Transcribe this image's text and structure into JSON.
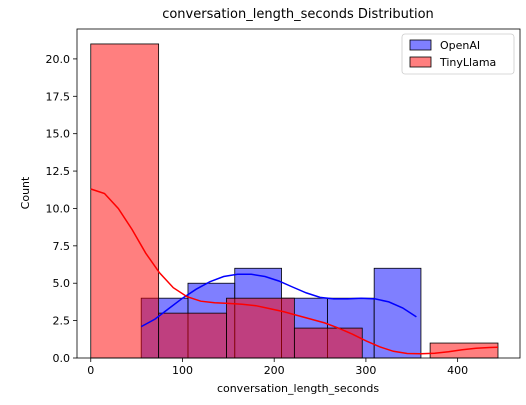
{
  "chart_data": {
    "type": "histogram",
    "title": "conversation_length_seconds Distribution",
    "xlabel": "conversation_length_seconds",
    "ylabel": "Count",
    "xlim": [
      -15,
      468
    ],
    "ylim": [
      0,
      22
    ],
    "xticks": [
      0,
      100,
      200,
      300,
      400
    ],
    "yticks": [
      0.0,
      2.5,
      5.0,
      7.5,
      10.0,
      12.5,
      15.0,
      17.5,
      20.0
    ],
    "legend_position": "top-right",
    "series": [
      {
        "name": "OpenAI",
        "color": "#0000ff",
        "bins": [
          {
            "x0": 55,
            "x1": 106,
            "count": 4
          },
          {
            "x0": 106,
            "x1": 157,
            "count": 5
          },
          {
            "x0": 157,
            "x1": 208,
            "count": 6
          },
          {
            "x0": 208,
            "x1": 258,
            "count": 4
          },
          {
            "x0": 258,
            "x1": 309,
            "count": 4
          },
          {
            "x0": 309,
            "x1": 360,
            "count": 6
          }
        ],
        "kde": [
          [
            55,
            2.1
          ],
          [
            70,
            2.6
          ],
          [
            85,
            3.3
          ],
          [
            100,
            4.0
          ],
          [
            115,
            4.6
          ],
          [
            130,
            5.1
          ],
          [
            145,
            5.45
          ],
          [
            160,
            5.6
          ],
          [
            175,
            5.6
          ],
          [
            190,
            5.45
          ],
          [
            205,
            5.15
          ],
          [
            220,
            4.75
          ],
          [
            235,
            4.35
          ],
          [
            250,
            4.05
          ],
          [
            265,
            3.95
          ],
          [
            280,
            3.95
          ],
          [
            295,
            4.0
          ],
          [
            310,
            3.95
          ],
          [
            325,
            3.75
          ],
          [
            340,
            3.35
          ],
          [
            355,
            2.75
          ]
        ]
      },
      {
        "name": "TinyLlama",
        "color": "#ff0000",
        "bins": [
          {
            "x0": 0,
            "x1": 74,
            "count": 21
          },
          {
            "x0": 74,
            "x1": 148,
            "count": 3
          },
          {
            "x0": 148,
            "x1": 222,
            "count": 4
          },
          {
            "x0": 222,
            "x1": 296,
            "count": 2
          },
          {
            "x0": 296,
            "x1": 370,
            "count": 0
          },
          {
            "x0": 370,
            "x1": 444,
            "count": 1
          }
        ],
        "kde": [
          [
            0,
            11.3
          ],
          [
            15,
            11.0
          ],
          [
            30,
            10.0
          ],
          [
            45,
            8.6
          ],
          [
            60,
            7.0
          ],
          [
            75,
            5.7
          ],
          [
            90,
            4.7
          ],
          [
            105,
            4.1
          ],
          [
            120,
            3.8
          ],
          [
            135,
            3.7
          ],
          [
            150,
            3.65
          ],
          [
            165,
            3.6
          ],
          [
            180,
            3.5
          ],
          [
            195,
            3.3
          ],
          [
            210,
            3.1
          ],
          [
            225,
            2.85
          ],
          [
            240,
            2.6
          ],
          [
            255,
            2.35
          ],
          [
            270,
            2.0
          ],
          [
            285,
            1.6
          ],
          [
            300,
            1.15
          ],
          [
            315,
            0.75
          ],
          [
            330,
            0.45
          ],
          [
            345,
            0.3
          ],
          [
            360,
            0.28
          ],
          [
            375,
            0.32
          ],
          [
            390,
            0.42
          ],
          [
            405,
            0.55
          ],
          [
            420,
            0.65
          ],
          [
            435,
            0.7
          ],
          [
            444,
            0.72
          ]
        ]
      }
    ]
  }
}
